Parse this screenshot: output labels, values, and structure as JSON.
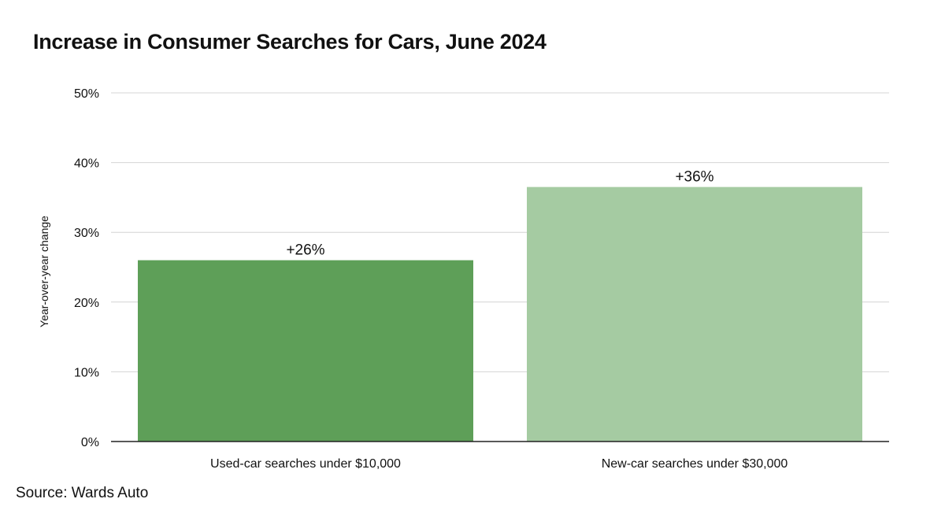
{
  "chart_data": {
    "type": "bar",
    "title": "Increase in Consumer Searches for Cars, June 2024",
    "ylabel": "Year-over-year change",
    "xlabel": "",
    "categories": [
      "Used-car searches under $10,000",
      "New-car searches under $30,000"
    ],
    "values": [
      26,
      36.5
    ],
    "data_labels": [
      "+26%",
      "+36%"
    ],
    "bar_colors": [
      "#5e9f58",
      "#a5cba2"
    ],
    "ylim": [
      0,
      50
    ],
    "yticks": [
      0,
      10,
      20,
      30,
      40,
      50
    ],
    "ytick_labels": [
      "0%",
      "10%",
      "20%",
      "30%",
      "40%",
      "50%"
    ],
    "grid": true,
    "legend": "none"
  },
  "source": "Source: Wards Auto"
}
